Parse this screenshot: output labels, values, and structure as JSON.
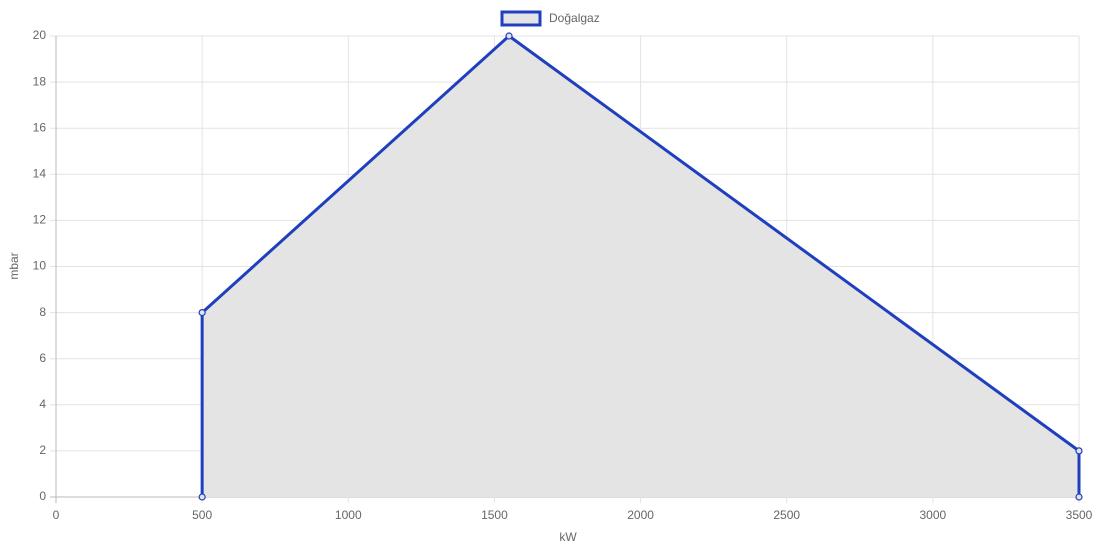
{
  "chart_data": {
    "type": "line",
    "x": [
      500,
      500,
      1550,
      3500,
      3500
    ],
    "series": [
      {
        "name": "Doğalgaz",
        "color": "#1f3fbf",
        "fill": "#e4e4e5",
        "values": [
          0,
          8,
          20,
          2,
          0
        ]
      }
    ],
    "xlim": [
      0,
      3500
    ],
    "xticks": [
      0,
      500,
      1000,
      1500,
      2000,
      2500,
      3000,
      3500
    ],
    "ylim": [
      0,
      20
    ],
    "yticks": [
      0,
      2,
      4,
      6,
      8,
      10,
      12,
      14,
      16,
      18,
      20
    ],
    "xlabel": "kW",
    "ylabel": "mbar",
    "grid": true,
    "legend": "top"
  }
}
